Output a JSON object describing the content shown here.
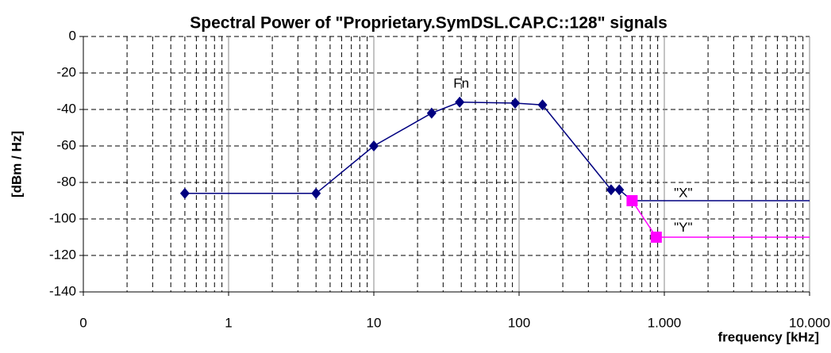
{
  "chart_data": {
    "type": "line",
    "title": "Spectral Power of \"Proprietary.SymDSL.CAP.C::128\" signals",
    "xlabel": "frequency [kHz]",
    "ylabel": "[dBm / Hz]",
    "xscale": "log",
    "xlim": [
      0.1,
      10000
    ],
    "ylim": [
      -140,
      0
    ],
    "xticks": [
      {
        "value": 0.1,
        "label": "0"
      },
      1,
      10,
      100,
      {
        "value": 1000,
        "label": "1.000"
      },
      {
        "value": 10000,
        "label": "10.000"
      }
    ],
    "yticks": [
      0,
      -20,
      -40,
      -60,
      -80,
      -100,
      -120,
      -140
    ],
    "grid": true,
    "series": [
      {
        "name": "\"X\"",
        "color": "#000080",
        "marker": "diamond",
        "x": [
          0.5,
          4,
          10,
          25,
          39,
          94,
          145,
          430,
          490,
          600,
          10000
        ],
        "values": [
          -86,
          -86,
          -60,
          -42,
          -36,
          -36.5,
          -37.5,
          -84,
          -84,
          -90,
          -90
        ]
      },
      {
        "name": "\"Y\"",
        "color": "#ff00ff",
        "marker": "square",
        "x": [
          600,
          880,
          10000
        ],
        "values": [
          -90,
          -110,
          -110
        ]
      }
    ],
    "annotations": [
      {
        "text": "Fn",
        "x": 40,
        "y": -26
      }
    ]
  }
}
